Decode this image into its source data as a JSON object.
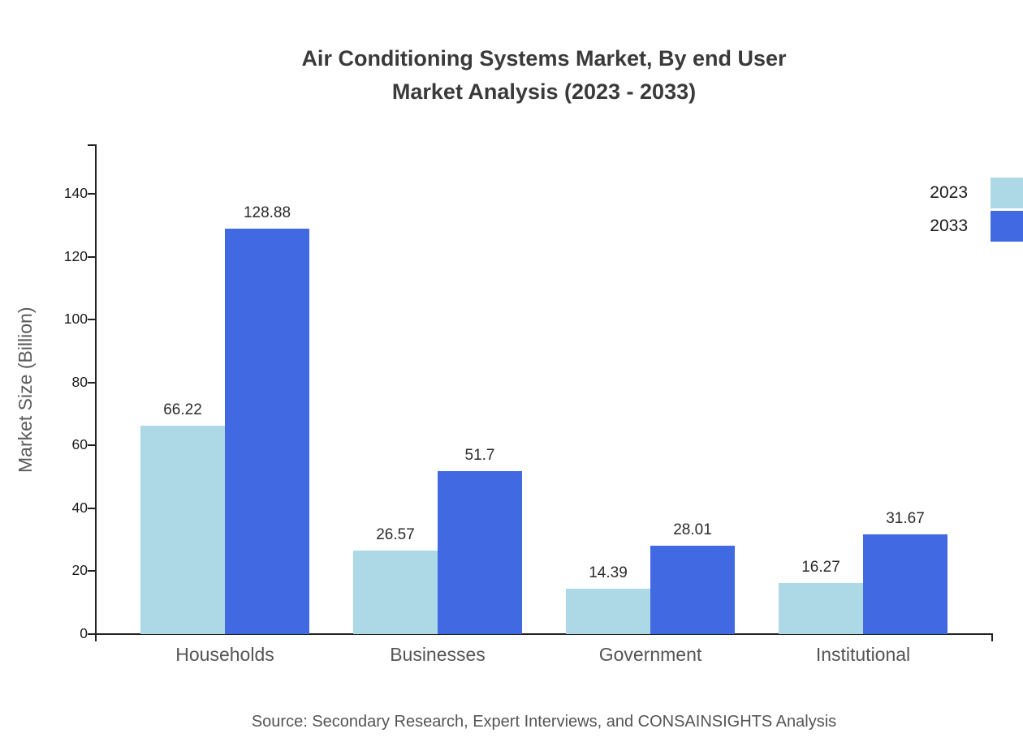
{
  "title": {
    "line1": "Air Conditioning Systems Market, By end User",
    "line2": "Market Analysis (2023 - 2033)"
  },
  "source": "Source: Secondary Research, Expert Interviews, and CONSAINSIGHTS Analysis",
  "chart_data": {
    "type": "bar",
    "title": "Air Conditioning Systems Market, By end User Market Analysis (2023 - 2033)",
    "categories": [
      "Households",
      "Businesses",
      "Government",
      "Institutional"
    ],
    "series": [
      {
        "name": "2023",
        "color": "#ADD8E6",
        "values": [
          66.22,
          26.57,
          14.39,
          16.27
        ]
      },
      {
        "name": "2033",
        "color": "#4169E1",
        "values": [
          128.88,
          51.7,
          28.01,
          31.67
        ]
      }
    ],
    "xlabel": "",
    "ylabel": "Market Size (Billion)",
    "ylim": [
      0,
      155
    ],
    "yticks": [
      0,
      20,
      40,
      60,
      80,
      100,
      120,
      140
    ],
    "grid": false,
    "legend_position": "top-right"
  }
}
